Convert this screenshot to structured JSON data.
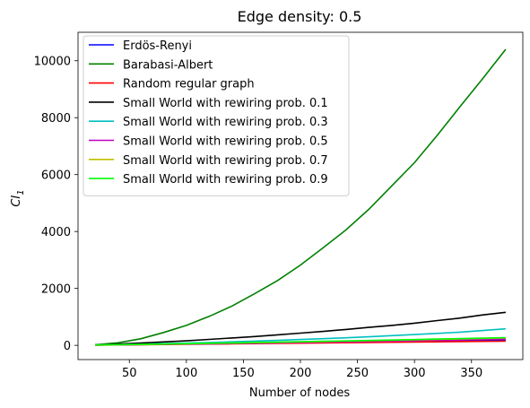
{
  "chart_data": {
    "type": "line",
    "title": "Edge density: 0.5",
    "xlabel": "Number of nodes",
    "ylabel": "CI",
    "ylabel_sub": "1",
    "xlim": [
      5,
      395
    ],
    "ylim": [
      -500,
      11000
    ],
    "xticks": [
      50,
      100,
      150,
      200,
      250,
      300,
      350
    ],
    "yticks": [
      0,
      2000,
      4000,
      6000,
      8000,
      10000
    ],
    "grid": false,
    "legend_position": "upper-left",
    "x": [
      20,
      40,
      60,
      80,
      100,
      120,
      140,
      160,
      180,
      200,
      220,
      240,
      260,
      280,
      300,
      320,
      340,
      360,
      380
    ],
    "series": [
      {
        "name": "Erdös-Renyi",
        "color": "#0000ff",
        "values": [
          10,
          20,
          30,
          40,
          50,
          60,
          70,
          80,
          90,
          100,
          110,
          120,
          130,
          140,
          150,
          160,
          170,
          180,
          190
        ]
      },
      {
        "name": "Barabasi-Albert",
        "color": "#008000",
        "values": [
          20,
          90,
          230,
          450,
          700,
          1020,
          1380,
          1820,
          2280,
          2820,
          3430,
          4060,
          4780,
          5600,
          6420,
          7380,
          8390,
          9380,
          10400
        ]
      },
      {
        "name": "Random regular graph",
        "color": "#ff0000",
        "values": [
          5,
          12,
          20,
          28,
          36,
          44,
          52,
          60,
          68,
          76,
          84,
          92,
          100,
          108,
          116,
          124,
          132,
          140,
          148
        ]
      },
      {
        "name": "Small World with rewiring prob. 0.1",
        "color": "#000000",
        "values": [
          20,
          45,
          80,
          120,
          160,
          210,
          260,
          310,
          370,
          430,
          490,
          560,
          630,
          700,
          780,
          870,
          960,
          1070,
          1160
        ]
      },
      {
        "name": "Small World with rewiring prob. 0.3",
        "color": "#00bfbf",
        "values": [
          10,
          25,
          40,
          60,
          80,
          100,
          125,
          150,
          175,
          205,
          235,
          265,
          300,
          340,
          380,
          420,
          465,
          520,
          580
        ]
      },
      {
        "name": "Small World with rewiring prob. 0.5",
        "color": "#bf00bf",
        "values": [
          10,
          18,
          26,
          35,
          44,
          54,
          64,
          75,
          86,
          98,
          110,
          122,
          135,
          148,
          162,
          176,
          190,
          205,
          220
        ]
      },
      {
        "name": "Small World with rewiring prob. 0.7",
        "color": "#bfbf00",
        "values": [
          10,
          20,
          30,
          42,
          54,
          66,
          78,
          92,
          106,
          120,
          134,
          148,
          162,
          178,
          194,
          210,
          226,
          244,
          262
        ]
      },
      {
        "name": "Small World with rewiring prob. 0.9",
        "color": "#00ff00",
        "values": [
          12,
          22,
          34,
          46,
          58,
          72,
          86,
          100,
          114,
          128,
          142,
          156,
          172,
          188,
          204,
          220,
          236,
          254,
          272
        ]
      }
    ]
  }
}
